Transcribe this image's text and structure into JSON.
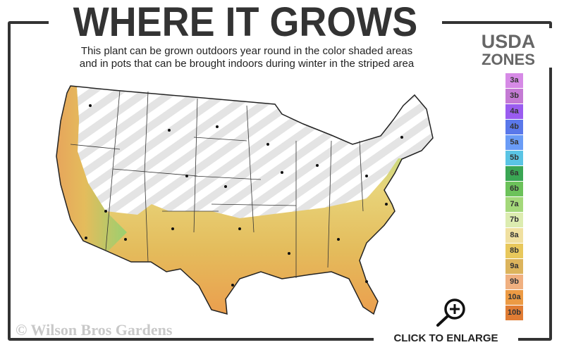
{
  "header": {
    "title": "WHERE IT GROWS",
    "subtitle_line1": "This plant can be grown outdoors year round in the color shaded areas",
    "subtitle_line2": "and in pots that can be brought indoors during winter in the striped area"
  },
  "legend": {
    "title_line1": "USDA",
    "title_line2": "ZONES",
    "zones": [
      {
        "label": "3a",
        "color": "#d68ae6"
      },
      {
        "label": "3b",
        "color": "#c47ad4"
      },
      {
        "label": "4a",
        "color": "#9a5cf0"
      },
      {
        "label": "4b",
        "color": "#5a78ea"
      },
      {
        "label": "5a",
        "color": "#6a9cf6"
      },
      {
        "label": "5b",
        "color": "#5ac4e4"
      },
      {
        "label": "6a",
        "color": "#3aa654"
      },
      {
        "label": "6b",
        "color": "#6cc25a"
      },
      {
        "label": "7a",
        "color": "#a4d87a"
      },
      {
        "label": "7b",
        "color": "#dcecb0"
      },
      {
        "label": "8a",
        "color": "#f0e0a0"
      },
      {
        "label": "8b",
        "color": "#e8c85c"
      },
      {
        "label": "9a",
        "color": "#dcb45c"
      },
      {
        "label": "9b",
        "color": "#f0b080"
      },
      {
        "label": "10a",
        "color": "#ec9a44"
      },
      {
        "label": "10b",
        "color": "#e07c34"
      }
    ]
  },
  "footer": {
    "copyright": "© Wilson Bros Gardens",
    "enlarge_label": "CLICK TO ENLARGE"
  },
  "map": {
    "striped_area": "pots-indoors-winter",
    "shaded_area": "outdoors-year-round",
    "icon": "zoom-in-icon"
  }
}
